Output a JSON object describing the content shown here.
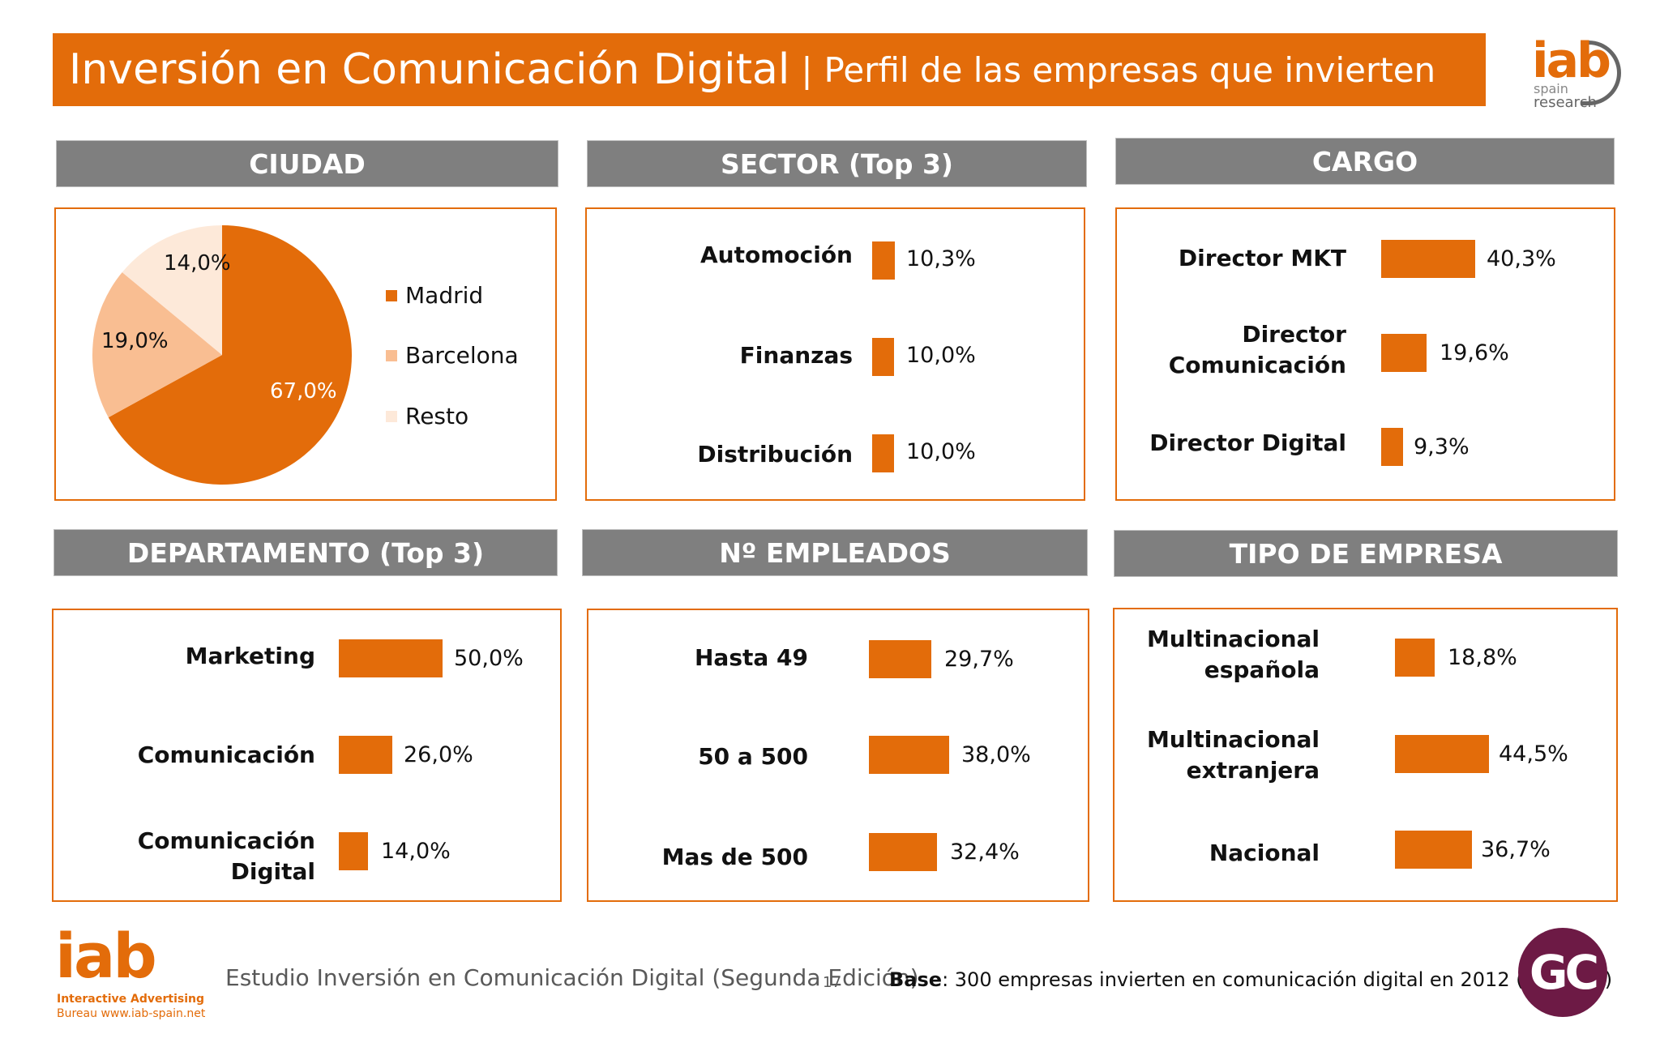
{
  "title": {
    "main": "Inversión en Comunicación Digital",
    "separator": "|",
    "sub": "Perfil de las empresas que invierten"
  },
  "logo_top": {
    "brand": "iab",
    "line1": "spain",
    "line2": "research"
  },
  "panels": {
    "ciudad": {
      "header": "CIUDAD",
      "legend": [
        "Madrid",
        "Barcelona",
        "Resto"
      ],
      "labels": [
        "67,0%",
        "19,0%",
        "14,0%"
      ]
    },
    "sector": {
      "header": "SECTOR (Top 3)",
      "categories": [
        "Automoción",
        "Finanzas",
        "Distribución"
      ],
      "labels": [
        "10,3%",
        "10,0%",
        "10,0%"
      ]
    },
    "cargo": {
      "header": "CARGO",
      "categories": [
        "Director MKT",
        "Director\nComunicación",
        "Director Digital"
      ],
      "labels": [
        "40,3%",
        "19,6%",
        "9,3%"
      ]
    },
    "departamento": {
      "header": "DEPARTAMENTO (Top 3)",
      "categories": [
        "Marketing",
        "Comunicación",
        "Comunicación\nDigital"
      ],
      "labels": [
        "50,0%",
        "26,0%",
        "14,0%"
      ]
    },
    "empleados": {
      "header": "Nº EMPLEADOS",
      "categories": [
        "Hasta 49",
        "50 a 500",
        "Mas de 500"
      ],
      "labels": [
        "29,7%",
        "38,0%",
        "32,4%"
      ]
    },
    "tipo": {
      "header": "TIPO DE EMPRESA",
      "categories": [
        "Multinacional\nespañola",
        "Multinacional\nextranjera",
        "Nacional"
      ],
      "labels": [
        "18,8%",
        "44,5%",
        "36,7%"
      ]
    }
  },
  "chart_data": [
    {
      "type": "pie",
      "title": "CIUDAD",
      "categories": [
        "Madrid",
        "Barcelona",
        "Resto"
      ],
      "values": [
        67.0,
        19.0,
        14.0
      ],
      "colors": [
        "#e36c0a",
        "#f9be92",
        "#fde9d9"
      ],
      "legend": "right"
    },
    {
      "type": "bar",
      "title": "SECTOR (Top 3)",
      "categories": [
        "Automoción",
        "Finanzas",
        "Distribución"
      ],
      "values": [
        10.3,
        10.0,
        10.0
      ],
      "orientation": "horizontal",
      "color": "#e36c0a"
    },
    {
      "type": "bar",
      "title": "CARGO",
      "categories": [
        "Director MKT",
        "Director Comunicación",
        "Director Digital"
      ],
      "values": [
        40.3,
        19.6,
        9.3
      ],
      "orientation": "horizontal",
      "color": "#e36c0a"
    },
    {
      "type": "bar",
      "title": "DEPARTAMENTO (Top 3)",
      "categories": [
        "Marketing",
        "Comunicación",
        "Comunicación Digital"
      ],
      "values": [
        50.0,
        26.0,
        14.0
      ],
      "orientation": "horizontal",
      "color": "#e36c0a"
    },
    {
      "type": "bar",
      "title": "Nº EMPLEADOS",
      "categories": [
        "Hasta 49",
        "50 a 500",
        "Mas de 500"
      ],
      "values": [
        29.7,
        38.0,
        32.4
      ],
      "orientation": "horizontal",
      "color": "#e36c0a"
    },
    {
      "type": "bar",
      "title": "TIPO DE EMPRESA",
      "categories": [
        "Multinacional española",
        "Multinacional extranjera",
        "Nacional"
      ],
      "values": [
        18.8,
        44.5,
        36.7
      ],
      "orientation": "horizontal",
      "color": "#e36c0a"
    }
  ],
  "footer": {
    "logo_brand": "iab",
    "logo_line1": "Interactive Advertising",
    "logo_line2": "Bureau www.iab-spain.net",
    "study": "Estudio Inversión en Comunicación Digital (Segunda Edición)",
    "page": "17",
    "base_label": "Base",
    "base_text": ": 300 empresas invierten en comunicación digital en 2012 (Datos %)",
    "gc_logo": "GC"
  }
}
